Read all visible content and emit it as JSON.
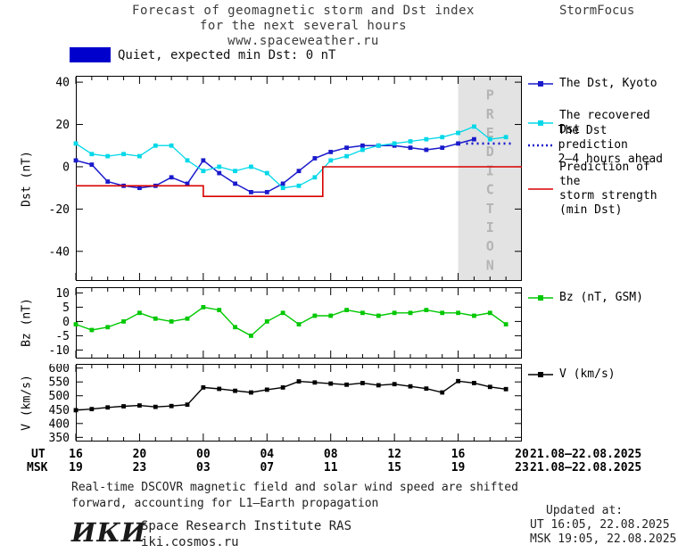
{
  "header": {
    "line1": "Forecast of geomagnetic storm and Dst index",
    "line2": "for the next several hours",
    "line3": "www.spaceweather.ru",
    "brand": "StormFocus"
  },
  "status": {
    "text": "Quiet, expected min Dst: 0 nT",
    "swatch_color": "#0000cc"
  },
  "prediction_band": {
    "text": "PREDICTION",
    "fill": "#e3e3e3",
    "letter_color": "#b4b4b4"
  },
  "axes": {
    "dst_label": "Dst (nT)",
    "bz_label": "Bz (nT)",
    "v_label": "V (km/s)",
    "ut_key": "UT",
    "msk_key": "MSK",
    "ut_date": "21.08–22.08.2025",
    "msk_date": "21.08–22.08.2025"
  },
  "legend": {
    "items": [
      {
        "id": "dst-kyoto",
        "label": "The Dst, Kyoto",
        "color": "#1a1acc",
        "marker": true
      },
      {
        "id": "recovered-dst",
        "label": "The recovered Dst",
        "color": "#00d8e8",
        "marker": true
      },
      {
        "id": "dst-prediction",
        "label": "The Dst prediction\n2–4 hours ahead",
        "color": "#1a1acc",
        "dash": "2 3",
        "line_width": 2.4
      },
      {
        "id": "storm-strength",
        "label": "Prediction of the\nstorm strength\n(min Dst)",
        "color": "#d80000"
      },
      {
        "id": "bz",
        "label": "Bz (nT, GSM)",
        "color": "#00c800",
        "marker": true
      },
      {
        "id": "v",
        "label": "V (km/s)",
        "color": "#000000",
        "marker": true
      }
    ]
  },
  "footer": {
    "line1": "Real-time DSCOVR magnetic field and solar wind speed are shifted",
    "line2": "forward, accounting for L1–Earth propagation"
  },
  "updated": {
    "title": "Updated at:",
    "ut": "UT  16:05, 22.08.2025",
    "msk": "MSK 19:05, 22.08.2025"
  },
  "org": {
    "logo": "ИКИ",
    "name": "Space Research Institute RAS",
    "site": "iki.cosmos.ru"
  },
  "chart_data": {
    "type": "line",
    "title": "Forecast of geomagnetic storm and Dst index for the next several hours",
    "x_unit": "hours since 16:00 UT 21.08.2025",
    "x_range": [
      0,
      28
    ],
    "x_major": [
      0,
      4,
      8,
      12,
      16,
      20,
      24,
      28
    ],
    "ut_tick_labels": [
      "16",
      "20",
      "00",
      "04",
      "08",
      "12",
      "16",
      "20"
    ],
    "msk_tick_labels": [
      "19",
      "23",
      "03",
      "07",
      "11",
      "15",
      "19",
      "23"
    ],
    "prediction_band_hours": [
      24,
      28
    ],
    "panels": [
      {
        "id": "dst",
        "ylabel": "Dst (nT)",
        "ylim": [
          -54,
          43
        ],
        "yticks": [
          40,
          20,
          0,
          -20,
          -40
        ],
        "band": true,
        "series": [
          {
            "name": "The Dst, Kyoto",
            "color": "#1a1acc",
            "marker": true,
            "width": 1.5,
            "x": [
              0,
              1,
              2,
              3,
              4,
              5,
              6,
              7,
              8,
              9,
              10,
              11,
              12,
              13,
              14,
              15,
              16,
              17,
              18,
              19,
              20,
              21,
              22,
              23,
              24,
              25
            ],
            "y": [
              3,
              1,
              -7,
              -9,
              -10,
              -9,
              -5,
              -8,
              3,
              -3,
              -8,
              -12,
              -12,
              -8,
              -2,
              4,
              7,
              9,
              10,
              10,
              10,
              9,
              8,
              9,
              11,
              13
            ]
          },
          {
            "name": "The recovered Dst",
            "color": "#00d8e8",
            "marker": true,
            "width": 1.3,
            "x": [
              0,
              1,
              2,
              3,
              4,
              5,
              6,
              7,
              8,
              9,
              10,
              11,
              12,
              13,
              14,
              15,
              16,
              17,
              18,
              19,
              20,
              21,
              22,
              23,
              24,
              25,
              26,
              27
            ],
            "y": [
              11,
              6,
              5,
              6,
              5,
              10,
              10,
              3,
              -2,
              0,
              -2,
              0,
              -3,
              -10,
              -9,
              -5,
              3,
              5,
              8,
              10,
              11,
              12,
              13,
              14,
              16,
              19,
              13,
              14
            ]
          },
          {
            "name": "The Dst prediction 2–4 hours ahead",
            "color": "#1a1acc",
            "dash": "2 4",
            "width": 2.6,
            "x": [
              24.5,
              27.5
            ],
            "y": [
              11,
              11
            ]
          },
          {
            "name": "Prediction of the storm strength (min Dst)",
            "color": "#d80000",
            "width": 1.6,
            "x": [
              0,
              8,
              8,
              15.5,
              15.5,
              28
            ],
            "y": [
              -9,
              -9,
              -14,
              -14,
              0,
              0
            ]
          }
        ]
      },
      {
        "id": "bz",
        "ylabel": "Bz (nT)",
        "ylim": [
          -13,
          12
        ],
        "yticks": [
          10,
          5,
          0,
          -5,
          -10
        ],
        "band": false,
        "series": [
          {
            "name": "Bz (nT, GSM)",
            "color": "#00c800",
            "marker": true,
            "width": 1.4,
            "x": [
              0,
              1,
              2,
              3,
              4,
              5,
              6,
              7,
              8,
              9,
              10,
              11,
              12,
              13,
              14,
              15,
              16,
              17,
              18,
              19,
              20,
              21,
              22,
              23,
              24,
              25,
              26,
              27
            ],
            "y": [
              -1,
              -3,
              -2,
              0,
              3,
              1,
              0,
              1,
              5,
              4,
              -2,
              -5,
              0,
              3,
              -1,
              2,
              2,
              4,
              3,
              2,
              3,
              3,
              4,
              3,
              3,
              2,
              3,
              -1
            ]
          }
        ]
      },
      {
        "id": "v",
        "ylabel": "V (km/s)",
        "ylim": [
          335,
          615
        ],
        "yticks": [
          600,
          550,
          500,
          450,
          400,
          350
        ],
        "band": false,
        "series": [
          {
            "name": "V (km/s)",
            "color": "#000000",
            "marker": true,
            "width": 1.4,
            "x": [
              0,
              1,
              2,
              3,
              4,
              5,
              6,
              7,
              8,
              9,
              10,
              11,
              12,
              13,
              14,
              15,
              16,
              17,
              18,
              19,
              20,
              21,
              22,
              23,
              24,
              25,
              26,
              27
            ],
            "y": [
              448,
              452,
              458,
              462,
              465,
              460,
              463,
              468,
              530,
              525,
              518,
              512,
              522,
              530,
              552,
              548,
              544,
              540,
              546,
              538,
              542,
              534,
              526,
              512,
              553,
              546,
              532,
              524
            ]
          }
        ]
      }
    ]
  }
}
